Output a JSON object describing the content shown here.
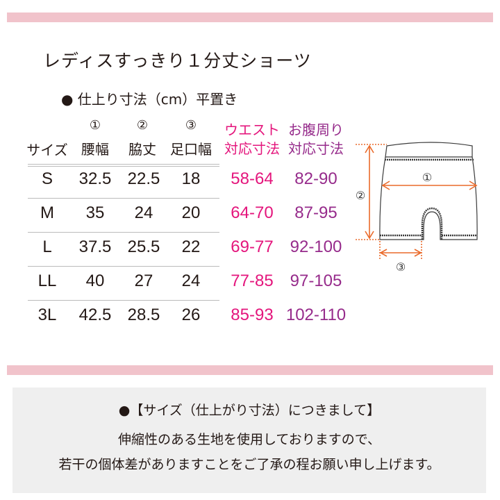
{
  "title": "レディスすっきり１分丈ショーツ",
  "subtitle": "● 仕上り寸法（cm）平置き",
  "table": {
    "headers": {
      "size": "サイズ",
      "waist_width": {
        "num": "①",
        "label": "腰幅"
      },
      "side_length": {
        "num": "②",
        "label": "脇丈"
      },
      "leg_width": {
        "num": "③",
        "label": "足口幅"
      },
      "waist_fit": {
        "line1": "ウエスト",
        "line2": "対応寸法"
      },
      "belly_fit": {
        "line1": "お腹周り",
        "line2": "対応寸法"
      }
    },
    "rows": [
      {
        "size": "S",
        "waist": "32.5",
        "side": "22.5",
        "leg": "18",
        "waist_fit": "58-64",
        "belly_fit": "82-90"
      },
      {
        "size": "M",
        "waist": "35",
        "side": "24",
        "leg": "20",
        "waist_fit": "64-70",
        "belly_fit": "87-95"
      },
      {
        "size": "L",
        "waist": "37.5",
        "side": "25.5",
        "leg": "22",
        "waist_fit": "69-77",
        "belly_fit": "92-100"
      },
      {
        "size": "LL",
        "waist": "40",
        "side": "27",
        "leg": "24",
        "waist_fit": "77-85",
        "belly_fit": "97-105"
      },
      {
        "size": "3L",
        "waist": "42.5",
        "side": "28.5",
        "leg": "26",
        "waist_fit": "85-93",
        "belly_fit": "102-110"
      }
    ]
  },
  "diagram": {
    "label1": "①",
    "label2": "②",
    "label3": "③",
    "arrow_color": "#ea6a2a"
  },
  "note": {
    "heading": "●【サイズ（仕上がり寸法）につきまして】",
    "line1": "伸縮性のある生地を使用しておりますので、",
    "line2": "若干の個体差がありますことをご了承の程お願い申し上げます。"
  },
  "colors": {
    "band": "#f1c3cb",
    "waist_fit": "#e4157c",
    "belly_fit": "#962b8b",
    "note_bg": "#efefef"
  }
}
